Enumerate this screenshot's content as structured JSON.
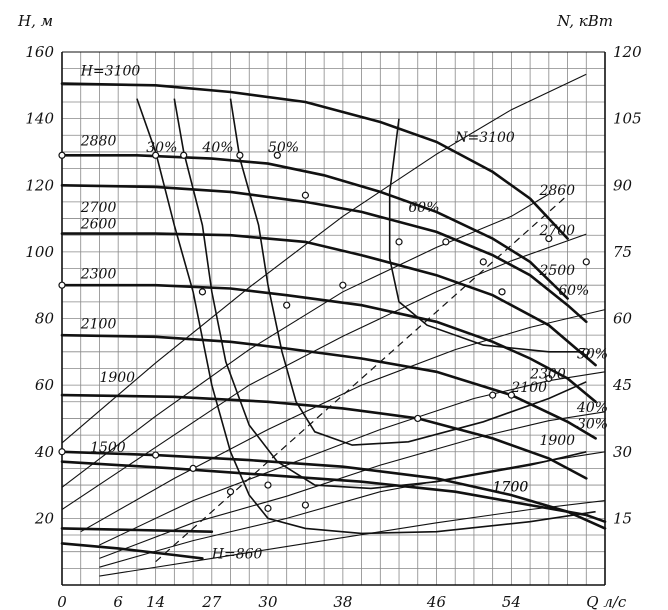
{
  "chart_data": {
    "type": "line",
    "title": "",
    "xlabel": "Q л/с",
    "ylabel_left": "Н, м",
    "ylabel_right": "N, кВт",
    "x_ticks": [
      "0",
      "6",
      "14",
      "27",
      "30",
      "38",
      "46",
      "54"
    ],
    "xlim": [
      0,
      58
    ],
    "y_left_ticks": [
      "20",
      "40",
      "60",
      "80",
      "100",
      "120",
      "140",
      "160"
    ],
    "ylim_left": [
      0,
      160
    ],
    "y_right_ticks": [
      "15",
      "30",
      "45",
      "60",
      "75",
      "90",
      "105",
      "120"
    ],
    "ylim_right": [
      0,
      120
    ],
    "grid": true,
    "head_curves": [
      {
        "label": "Н=3100",
        "points": [
          [
            0,
            150.5
          ],
          [
            10,
            150
          ],
          [
            18,
            148
          ],
          [
            26,
            145
          ],
          [
            34,
            139
          ],
          [
            40,
            133
          ],
          [
            46,
            124
          ],
          [
            50,
            116
          ],
          [
            54,
            104
          ]
        ]
      },
      {
        "label": "2880",
        "points": [
          [
            0,
            129
          ],
          [
            8,
            129
          ],
          [
            16,
            128
          ],
          [
            22,
            126.5
          ],
          [
            28,
            123
          ],
          [
            34,
            118
          ],
          [
            40,
            112
          ],
          [
            46,
            104
          ],
          [
            50,
            97
          ],
          [
            54,
            86
          ]
        ]
      },
      {
        "label": "2700",
        "points": [
          [
            0,
            120
          ],
          [
            10,
            119.5
          ],
          [
            18,
            118
          ],
          [
            26,
            115
          ],
          [
            32,
            112
          ],
          [
            40,
            106
          ],
          [
            46,
            99
          ],
          [
            50,
            93
          ],
          [
            54,
            84
          ],
          [
            56,
            79
          ]
        ]
      },
      {
        "label": "2600",
        "points": [
          [
            0,
            105.5
          ],
          [
            10,
            105.5
          ],
          [
            18,
            105
          ],
          [
            26,
            103
          ],
          [
            32,
            99
          ],
          [
            40,
            93
          ],
          [
            46,
            87
          ],
          [
            52,
            78
          ],
          [
            57,
            66
          ]
        ]
      },
      {
        "label": "2300",
        "points": [
          [
            0,
            90
          ],
          [
            10,
            90
          ],
          [
            18,
            89
          ],
          [
            24,
            87
          ],
          [
            32,
            84
          ],
          [
            40,
            79
          ],
          [
            46,
            73
          ],
          [
            50,
            68
          ],
          [
            54,
            62
          ],
          [
            57,
            55
          ]
        ]
      },
      {
        "label": "2100",
        "points": [
          [
            0,
            75
          ],
          [
            10,
            74.5
          ],
          [
            18,
            73
          ],
          [
            24,
            71
          ],
          [
            32,
            68
          ],
          [
            40,
            64
          ],
          [
            48,
            57
          ],
          [
            54,
            49
          ],
          [
            57,
            44
          ]
        ]
      },
      {
        "label": "1900",
        "points": [
          [
            0,
            57
          ],
          [
            12,
            56.5
          ],
          [
            22,
            55
          ],
          [
            30,
            53
          ],
          [
            38,
            50
          ],
          [
            46,
            44
          ],
          [
            52,
            38
          ],
          [
            56,
            32
          ]
        ]
      },
      {
        "label": "1500",
        "points": [
          [
            0,
            40
          ],
          [
            10,
            39
          ],
          [
            20,
            37.5
          ],
          [
            30,
            35.5
          ],
          [
            40,
            32
          ],
          [
            48,
            27
          ],
          [
            54,
            22
          ],
          [
            58,
            17
          ]
        ]
      },
      {
        "label": "1700",
        "points": [
          [
            0,
            37
          ],
          [
            12,
            35
          ],
          [
            22,
            33
          ],
          [
            32,
            31
          ],
          [
            42,
            28
          ],
          [
            50,
            24
          ],
          [
            56,
            21
          ],
          [
            58,
            19
          ]
        ]
      },
      {
        "label": "",
        "points": [
          [
            0,
            17
          ],
          [
            8,
            16.5
          ],
          [
            16,
            16
          ]
        ]
      },
      {
        "label": "Н=860",
        "points": [
          [
            0,
            12.5
          ],
          [
            6,
            11
          ],
          [
            12,
            9
          ],
          [
            15,
            8
          ]
        ]
      }
    ],
    "power_curves": [
      {
        "label": "N=3100",
        "points": [
          [
            0,
            32
          ],
          [
            10,
            50
          ],
          [
            20,
            67
          ],
          [
            30,
            83
          ],
          [
            40,
            97
          ],
          [
            48,
            107
          ],
          [
            56,
            115
          ]
        ]
      },
      {
        "label": "2860",
        "points": [
          [
            0,
            22
          ],
          [
            10,
            38
          ],
          [
            20,
            53
          ],
          [
            30,
            66
          ],
          [
            40,
            76
          ],
          [
            48,
            83
          ],
          [
            52,
            88
          ]
        ]
      },
      {
        "label": "2700",
        "points": [
          [
            0,
            17
          ],
          [
            10,
            31
          ],
          [
            20,
            45
          ],
          [
            30,
            56
          ],
          [
            40,
            66
          ],
          [
            48,
            73
          ],
          [
            56,
            79
          ]
        ]
      },
      {
        "label": "2500",
        "points": [
          [
            2,
            12
          ],
          [
            12,
            24
          ],
          [
            22,
            35
          ],
          [
            32,
            45
          ],
          [
            42,
            53
          ],
          [
            50,
            58
          ],
          [
            58,
            62
          ]
        ]
      },
      {
        "label": "2300",
        "points": [
          [
            4,
            9
          ],
          [
            14,
            19
          ],
          [
            24,
            27
          ],
          [
            34,
            35
          ],
          [
            44,
            42
          ],
          [
            52,
            46
          ],
          [
            58,
            48
          ]
        ]
      },
      {
        "label": "2100",
        "points": [
          [
            4,
            6
          ],
          [
            14,
            14
          ],
          [
            24,
            20
          ],
          [
            34,
            27
          ],
          [
            44,
            33
          ],
          [
            52,
            37
          ],
          [
            58,
            39
          ]
        ]
      },
      {
        "label": "1900",
        "points": [
          [
            4,
            4
          ],
          [
            14,
            10
          ],
          [
            24,
            15
          ],
          [
            34,
            21
          ],
          [
            44,
            25
          ],
          [
            52,
            28
          ],
          [
            58,
            30
          ]
        ]
      },
      {
        "label": "1700",
        "points": [
          [
            4,
            2
          ],
          [
            16,
            6
          ],
          [
            28,
            10
          ],
          [
            40,
            14
          ],
          [
            50,
            17
          ],
          [
            58,
            19
          ]
        ]
      }
    ],
    "efficiency_curves": [
      {
        "label": "30%",
        "points": [
          [
            8,
            146
          ],
          [
            10,
            130
          ],
          [
            12,
            108
          ],
          [
            14,
            88
          ],
          [
            16,
            60
          ],
          [
            18,
            40
          ],
          [
            20,
            27
          ],
          [
            22,
            20
          ],
          [
            26,
            17
          ],
          [
            32,
            15.5
          ],
          [
            40,
            16
          ],
          [
            50,
            19
          ],
          [
            57,
            22
          ]
        ]
      },
      {
        "label": "40%",
        "points": [
          [
            12,
            146
          ],
          [
            13,
            130
          ],
          [
            15,
            108
          ],
          [
            16,
            88
          ],
          [
            17.5,
            67
          ],
          [
            20,
            48
          ],
          [
            23,
            37
          ],
          [
            27,
            30
          ],
          [
            33,
            29
          ],
          [
            40,
            31
          ],
          [
            50,
            36
          ],
          [
            56,
            40
          ]
        ]
      },
      {
        "label": "50%",
        "points": [
          [
            18,
            146
          ],
          [
            19,
            128
          ],
          [
            21,
            108
          ],
          [
            22,
            90
          ],
          [
            23.5,
            70
          ],
          [
            25,
            55
          ],
          [
            27,
            46
          ],
          [
            31,
            42
          ],
          [
            37,
            43
          ],
          [
            45,
            49
          ],
          [
            52,
            56
          ],
          [
            56,
            61
          ]
        ]
      },
      {
        "label": "60%",
        "points": [
          [
            36,
            140
          ],
          [
            35,
            118
          ],
          [
            35,
            98
          ],
          [
            36,
            85
          ],
          [
            39,
            78
          ],
          [
            45,
            72
          ],
          [
            52,
            70
          ],
          [
            56,
            70
          ]
        ]
      }
    ],
    "series_labels": [
      "30%",
      "40%",
      "50%",
      "60%",
      "30%",
      "40%",
      "50%",
      "60%"
    ]
  }
}
